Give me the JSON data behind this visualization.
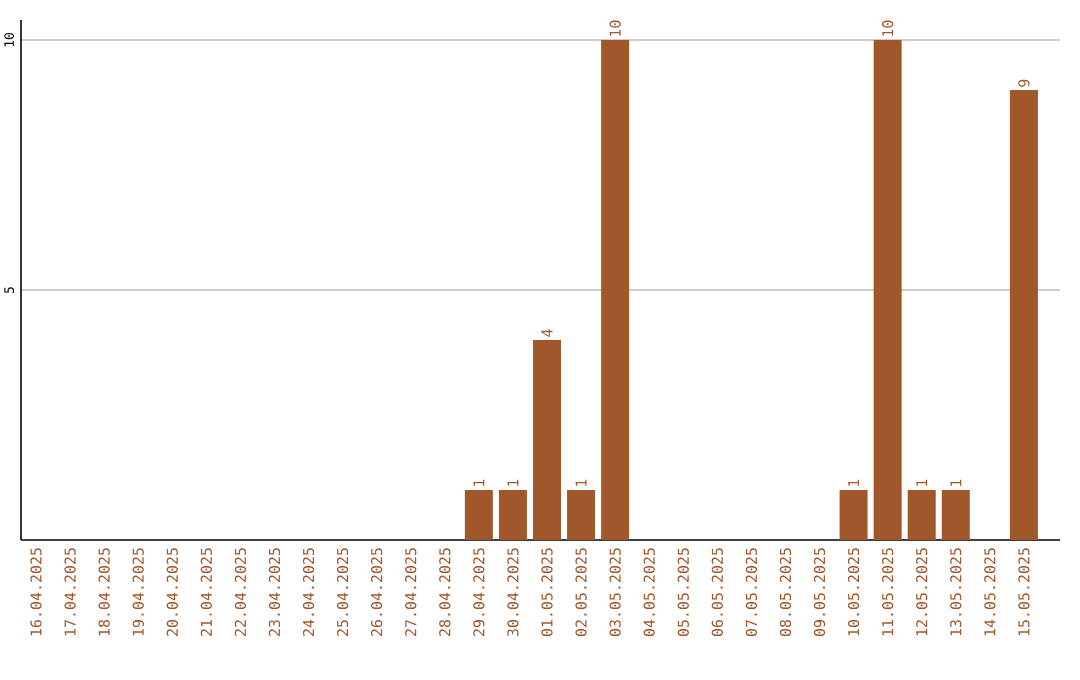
{
  "chart_data": {
    "type": "bar",
    "categories": [
      "16.04.2025",
      "17.04.2025",
      "18.04.2025",
      "19.04.2025",
      "20.04.2025",
      "21.04.2025",
      "22.04.2025",
      "23.04.2025",
      "24.04.2025",
      "25.04.2025",
      "26.04.2025",
      "27.04.2025",
      "28.04.2025",
      "29.04.2025",
      "30.04.2025",
      "01.05.2025",
      "02.05.2025",
      "03.05.2025",
      "04.05.2025",
      "05.05.2025",
      "06.05.2025",
      "07.05.2025",
      "08.05.2025",
      "09.05.2025",
      "10.05.2025",
      "11.05.2025",
      "12.05.2025",
      "13.05.2025",
      "14.05.2025",
      "15.05.2025"
    ],
    "values": [
      0,
      0,
      0,
      0,
      0,
      0,
      0,
      0,
      0,
      0,
      0,
      0,
      0,
      1,
      1,
      4,
      1,
      10,
      0,
      0,
      0,
      0,
      0,
      0,
      1,
      10,
      1,
      1,
      0,
      9
    ],
    "value_labels": [
      null,
      null,
      null,
      null,
      null,
      null,
      null,
      null,
      null,
      null,
      null,
      null,
      null,
      "1",
      "1",
      "4",
      "1",
      "10",
      null,
      null,
      null,
      null,
      null,
      null,
      "1",
      "10",
      "1",
      "1",
      null,
      "9"
    ],
    "color": "#a0572a",
    "ylim": [
      0,
      10.4
    ],
    "yticks": [
      5,
      10
    ],
    "grid": "y"
  }
}
